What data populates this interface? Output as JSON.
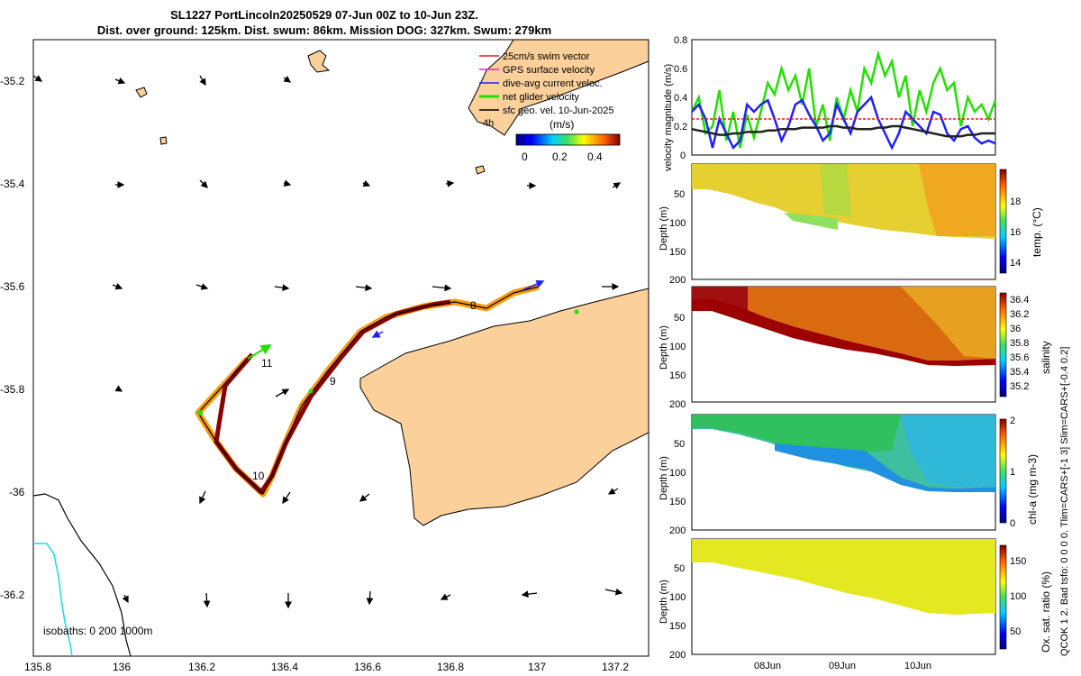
{
  "header": {
    "title_line1": "SL1227 PortLincoln20250529 07-Jun 00Z to 10-Jun 23Z.",
    "title_line2": "Dist. over ground: 125km. Dist. swum: 86km. Mission DOG: 327km. Swum: 279km"
  },
  "map": {
    "lon_ticks": [
      "135.8",
      "136",
      "136.2",
      "136.4",
      "136.6",
      "136.8",
      "137",
      "137.2"
    ],
    "lat_ticks": [
      "-35.2",
      "-35.4",
      "-35.6",
      "-35.8",
      "-36",
      "-36.2"
    ],
    "isobaths_label": "isobaths: 0   200  1000m",
    "track_labels": [
      "8",
      "9",
      "10",
      "11"
    ],
    "legend": {
      "items": [
        {
          "label": "25cm/s swim vector",
          "color": "#e41a1c"
        },
        {
          "label": "GPS surface velocity",
          "color": "#e020e0"
        },
        {
          "label": "dive-avg current veloc.",
          "color": "#2020ff"
        },
        {
          "label": "net glider velocity",
          "color": "#00e000"
        },
        {
          "label": "sfc geo. vel. 10-Jun-2025",
          "color": "#000000"
        }
      ],
      "time_label": "4h",
      "colorbar_unit": "(m/s)",
      "colorbar_ticks": [
        "0",
        "0.2",
        "0.4"
      ]
    }
  },
  "chart_data": [
    {
      "type": "line",
      "title": "",
      "ylabel": "velocity magnitude (m/s)",
      "ylim": [
        0,
        0.8
      ],
      "yticks": [
        "0",
        "0.2",
        "0.4",
        "0.6",
        "0.8"
      ],
      "series": [
        {
          "name": "net glider velocity",
          "color": "#22e000",
          "values": [
            0.3,
            0.4,
            0.15,
            0.2,
            0.45,
            0.1,
            0.3,
            0.05,
            0.28,
            0.12,
            0.3,
            0.5,
            0.42,
            0.6,
            0.45,
            0.55,
            0.35,
            0.6,
            0.2,
            0.35,
            0.1,
            0.4,
            0.25,
            0.45,
            0.3,
            0.6,
            0.5,
            0.7,
            0.55,
            0.65,
            0.4,
            0.55,
            0.2,
            0.45,
            0.3,
            0.5,
            0.6,
            0.45,
            0.5,
            0.2,
            0.4,
            0.3,
            0.35,
            0.25,
            0.38
          ]
        },
        {
          "name": "dive-avg current",
          "color": "#2020ff",
          "values": [
            0.3,
            0.35,
            0.25,
            0.05,
            0.25,
            0.15,
            0.05,
            0.1,
            0.35,
            0.3,
            0.35,
            0.38,
            0.25,
            0.1,
            0.2,
            0.35,
            0.38,
            0.28,
            0.2,
            0.1,
            0.15,
            0.35,
            0.25,
            0.15,
            0.3,
            0.35,
            0.4,
            0.25,
            0.15,
            0.05,
            0.15,
            0.3,
            0.25,
            0.2,
            0.15,
            0.3,
            0.28,
            0.15,
            0.1,
            0.18,
            0.2,
            0.12,
            0.08,
            0.1,
            0.08
          ]
        },
        {
          "name": "sfc geo. vel.",
          "color": "#222222",
          "values": [
            0.18,
            0.17,
            0.16,
            0.15,
            0.14,
            0.14,
            0.15,
            0.15,
            0.16,
            0.16,
            0.16,
            0.17,
            0.17,
            0.18,
            0.18,
            0.18,
            0.19,
            0.19,
            0.19,
            0.19,
            0.2,
            0.2,
            0.19,
            0.19,
            0.18,
            0.18,
            0.18,
            0.19,
            0.19,
            0.2,
            0.2,
            0.19,
            0.18,
            0.17,
            0.16,
            0.15,
            0.14,
            0.13,
            0.13,
            0.13,
            0.14,
            0.14,
            0.15,
            0.15,
            0.15
          ]
        },
        {
          "name": "25cm/s swim vector",
          "color": "#e41a1c",
          "values": [
            0.25,
            0.25
          ]
        }
      ]
    },
    {
      "type": "heatmap",
      "ylabel": "Depth (m)",
      "yticks": [
        "50",
        "100",
        "150",
        "200"
      ],
      "colorbar_label": "temp. (°C)",
      "colorbar_ticks": [
        "14",
        "16",
        "18"
      ]
    },
    {
      "type": "heatmap",
      "ylabel": "Depth (m)",
      "yticks": [
        "50",
        "100",
        "150",
        "200"
      ],
      "colorbar_label": "salinity",
      "colorbar_ticks": [
        "35.2",
        "35.4",
        "35.6",
        "35.8",
        "36",
        "36.2",
        "36.4"
      ]
    },
    {
      "type": "heatmap",
      "ylabel": "Depth (m)",
      "yticks": [
        "50",
        "100",
        "150",
        "200"
      ],
      "colorbar_label": "chl-a (mg m-3)",
      "colorbar_ticks": [
        "0",
        "1",
        "2"
      ]
    },
    {
      "type": "heatmap",
      "ylabel": "Depth (m)",
      "yticks": [
        "50",
        "100",
        "150",
        "200"
      ],
      "colorbar_label": "Ox. sat. ratio (%)",
      "colorbar_ticks": [
        "50",
        "100",
        "150"
      ],
      "xticks": [
        "08Jun",
        "09Jun",
        "10Jun"
      ]
    }
  ],
  "side_note": "QCOK 1  2. Bad tsfo: 0  0  0  0. Tlim=CARS+[-1 3] Slim=CARS+[-0.4 0.2]"
}
